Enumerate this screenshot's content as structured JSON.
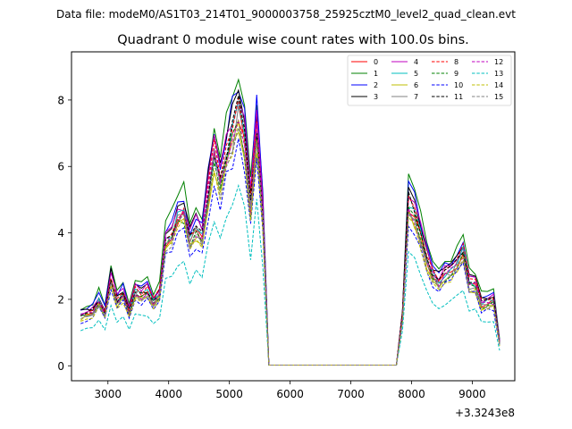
{
  "figure": {
    "suptitle": "Data file: modeM0/AS1T03_214T01_9000003758_25925cztM0_level2_quad_clean.evt"
  },
  "chart_data": {
    "type": "line",
    "title": "Quadrant 0 module wise count rates with 100.0s bins.",
    "xlabel": "",
    "ylabel": "",
    "x_offset_label": "+3.3243e8",
    "xlim": [
      2400,
      9700
    ],
    "ylim": [
      -0.45,
      9.45
    ],
    "x_ticks": [
      3000,
      4000,
      5000,
      6000,
      7000,
      8000,
      9000
    ],
    "x_tick_labels": [
      "3000",
      "4000",
      "5000",
      "6000",
      "7000",
      "8000",
      "9000"
    ],
    "y_ticks": [
      0,
      2,
      4,
      6,
      8
    ],
    "y_tick_labels": [
      "0",
      "2",
      "4",
      "6",
      "8"
    ],
    "legend": {
      "position": "top-right",
      "ncol": 4
    },
    "x": [
      2550,
      2650,
      2750,
      2850,
      2950,
      3050,
      3150,
      3250,
      3350,
      3450,
      3550,
      3650,
      3750,
      3850,
      3950,
      4050,
      4150,
      4250,
      4350,
      4450,
      4550,
      4650,
      4750,
      4850,
      4950,
      5050,
      5150,
      5250,
      5350,
      5450,
      5550,
      5650,
      7750,
      7850,
      7950,
      8050,
      8150,
      8250,
      8350,
      8450,
      8550,
      8650,
      8750,
      8850,
      8950,
      9050,
      9150,
      9250,
      9350,
      9450
    ],
    "base_profile": [
      1.55,
      1.6,
      1.65,
      2.0,
      1.6,
      2.65,
      2.0,
      2.2,
      1.65,
      2.3,
      2.15,
      2.3,
      1.95,
      2.2,
      3.8,
      4.0,
      4.55,
      4.7,
      3.8,
      4.2,
      3.9,
      5.3,
      6.6,
      5.6,
      6.5,
      7.1,
      7.9,
      6.9,
      4.9,
      7.3,
      4.6,
      0.02,
      0.02,
      1.5,
      5.0,
      4.6,
      4.0,
      3.3,
      2.8,
      2.6,
      2.8,
      2.9,
      3.2,
      3.5,
      2.5,
      2.5,
      1.9,
      1.95,
      2.0,
      0.7
    ],
    "series": [
      {
        "name": "0",
        "color": "#ff0000",
        "dash": "solid",
        "scale": 0.96
      },
      {
        "name": "1",
        "color": "#008000",
        "dash": "solid",
        "scale": 1.13
      },
      {
        "name": "2",
        "color": "#0000ff",
        "dash": "solid",
        "scale": 1.09
      },
      {
        "name": "3",
        "color": "#000000",
        "dash": "solid",
        "scale": 1.06
      },
      {
        "name": "4",
        "color": "#bf00bf",
        "dash": "solid",
        "scale": 1.04
      },
      {
        "name": "5",
        "color": "#00bfbf",
        "dash": "solid",
        "scale": 0.98
      },
      {
        "name": "6",
        "color": "#bfbf00",
        "dash": "solid",
        "scale": 0.92
      },
      {
        "name": "7",
        "color": "#808080",
        "dash": "solid",
        "scale": 0.95
      },
      {
        "name": "8",
        "color": "#ff0000",
        "dash": "dashed",
        "scale": 1.01
      },
      {
        "name": "9",
        "color": "#008000",
        "dash": "dashed",
        "scale": 0.94
      },
      {
        "name": "10",
        "color": "#0000ff",
        "dash": "dashed",
        "scale": 0.86
      },
      {
        "name": "11",
        "color": "#000000",
        "dash": "dashed",
        "scale": 1.0
      },
      {
        "name": "12",
        "color": "#bf00bf",
        "dash": "dashed",
        "scale": 0.97
      },
      {
        "name": "13",
        "color": "#00bfbf",
        "dash": "dashed",
        "scale": 0.68
      },
      {
        "name": "14",
        "color": "#bfbf00",
        "dash": "dashed",
        "scale": 0.9
      },
      {
        "name": "15",
        "color": "#808080",
        "dash": "dashed",
        "scale": 0.93
      }
    ]
  }
}
